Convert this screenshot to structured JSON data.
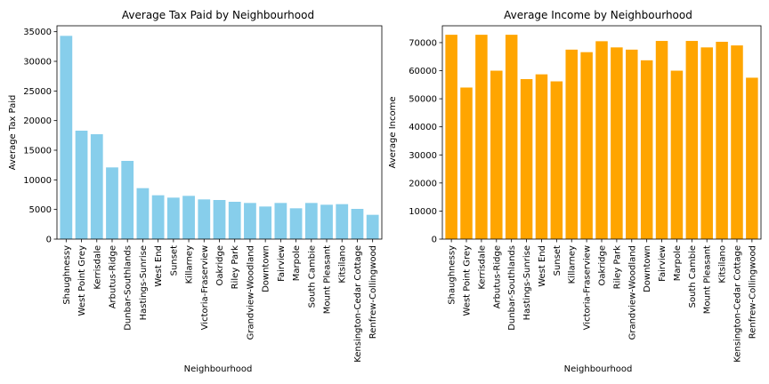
{
  "chart_data": [
    {
      "type": "bar",
      "title": "Average Tax Paid by Neighbourhood",
      "xlabel": "Neighbourhood",
      "ylabel": "Average Tax Paid",
      "ylim": [
        0,
        36000
      ],
      "yticks": [
        0,
        5000,
        10000,
        15000,
        20000,
        25000,
        30000,
        35000
      ],
      "grid": false,
      "color": "#87CEEB",
      "categories": [
        "Shaughnessy",
        "West Point Grey",
        "Kerrisdale",
        "Arbutus-Ridge",
        "Dunbar-Southlands",
        "Hastings-Sunrise",
        "West End",
        "Sunset",
        "Killarney",
        "Victoria-Fraserview",
        "Oakridge",
        "Riley Park",
        "Grandview-Woodland",
        "Downtown",
        "Fairview",
        "Marpole",
        "South Cambie",
        "Mount Pleasant",
        "Kitsilano",
        "Kensington-Cedar Cottage",
        "Renfrew-Collingwood"
      ],
      "values": [
        34300,
        18300,
        17700,
        12100,
        13200,
        8600,
        7400,
        7000,
        7300,
        6700,
        6600,
        6300,
        6100,
        5500,
        6100,
        5200,
        6100,
        5800,
        5900,
        5100,
        4100
      ]
    },
    {
      "type": "bar",
      "title": "Average Income by Neighbourhood",
      "xlabel": "Neighbourhood",
      "ylabel": "Average Income",
      "ylim": [
        0,
        76000
      ],
      "yticks": [
        0,
        10000,
        20000,
        30000,
        40000,
        50000,
        60000,
        70000
      ],
      "grid": false,
      "color": "#FFA500",
      "categories": [
        "Shaughnessy",
        "West Point Grey",
        "Kerrisdale",
        "Arbutus-Ridge",
        "Dunbar-Southlands",
        "Hastings-Sunrise",
        "West End",
        "Sunset",
        "Killarney",
        "Victoria-Fraserview",
        "Oakridge",
        "Riley Park",
        "Grandview-Woodland",
        "Downtown",
        "Fairview",
        "Marpole",
        "South Cambie",
        "Mount Pleasant",
        "Kitsilano",
        "Kensington-Cedar Cottage",
        "Renfrew-Collingwood"
      ],
      "values": [
        72800,
        54000,
        72800,
        60000,
        72800,
        57000,
        58700,
        56200,
        67500,
        66600,
        70500,
        68300,
        67500,
        63700,
        70600,
        60000,
        70600,
        68300,
        70300,
        69000,
        57500
      ]
    }
  ]
}
